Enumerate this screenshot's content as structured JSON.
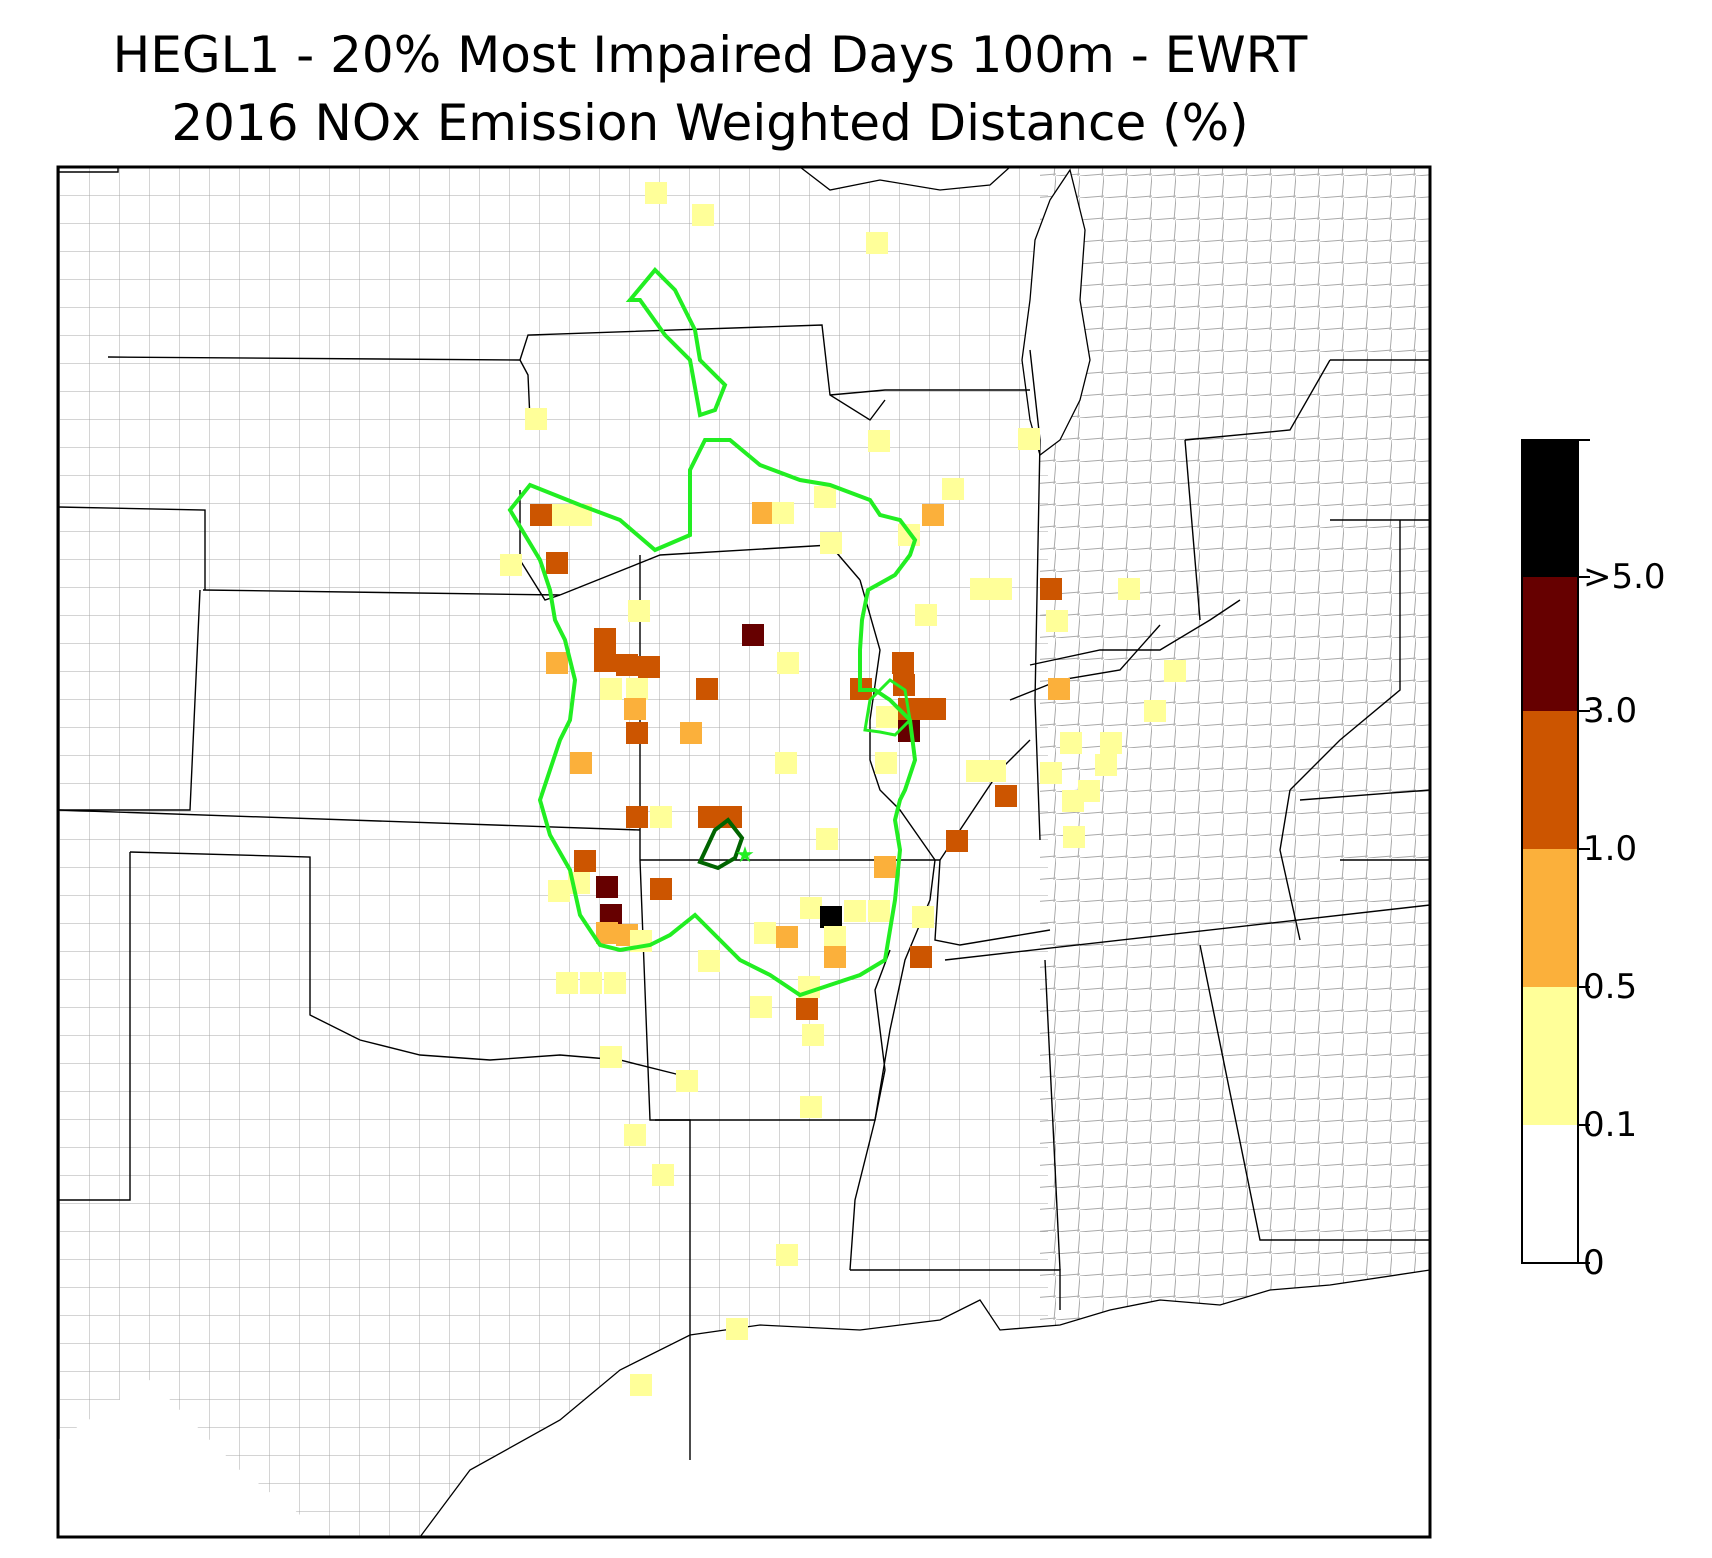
{
  "title_line1": "HEGL1 - 20% Most Impaired Days 100m - EWRT",
  "title_line2": "2016 NOx Emission Weighted Distance (%)",
  "colors": {
    "class_0_01": "#ffffff",
    "class_01_05": "#ffff99",
    "class_05_10": "#fbb03b",
    "class_10_30": "#cc5500",
    "class_30_50": "#660000",
    "class_gt5": "#000000",
    "contour_outer": "#22ee22",
    "contour_inner": "#006400",
    "county_lines": "#a9a9a9",
    "state_lines": "#000000"
  },
  "colorbar": {
    "ticks": [
      "0",
      "0.1",
      "0.5",
      "1.0",
      "3.0",
      ">5.0"
    ]
  }
}
